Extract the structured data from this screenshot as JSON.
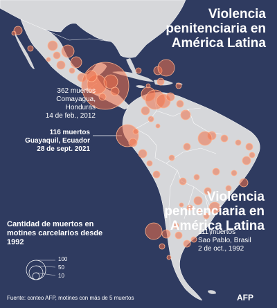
{
  "title": "Violencia penitenciaria en América Latina",
  "subtitle": "Violencia penitenciaria en América Latina",
  "annotations": {
    "comayagua": {
      "deaths": "362 muertos",
      "place": "Comayagua, Honduras",
      "date": "14 de feb., 2012"
    },
    "guayaquil": {
      "deaths": "116 muertos",
      "place": "Guayaquil, Ecuador",
      "date": "28 de sept. 2021"
    },
    "saopablo": {
      "deaths": "111 muertos",
      "place": "Sao Pablo, Brasil",
      "date": "2 de oct., 1992"
    }
  },
  "legend": {
    "title": "Cantidad de muertos en motines carcelarios desde 1992",
    "sizes": [
      {
        "value": 100,
        "label": "100"
      },
      {
        "value": 50,
        "label": "50"
      },
      {
        "value": 10,
        "label": "10"
      }
    ]
  },
  "source": "Fuente: conteo AFP, motines con más de 5 muertos",
  "credit": "AFP",
  "colors": {
    "ocean": "#2f3b60",
    "land": "#d6d7da",
    "bubble": "#f0714a",
    "bubbleStroke": "#ffb38f",
    "text": "#ffffff"
  }
}
